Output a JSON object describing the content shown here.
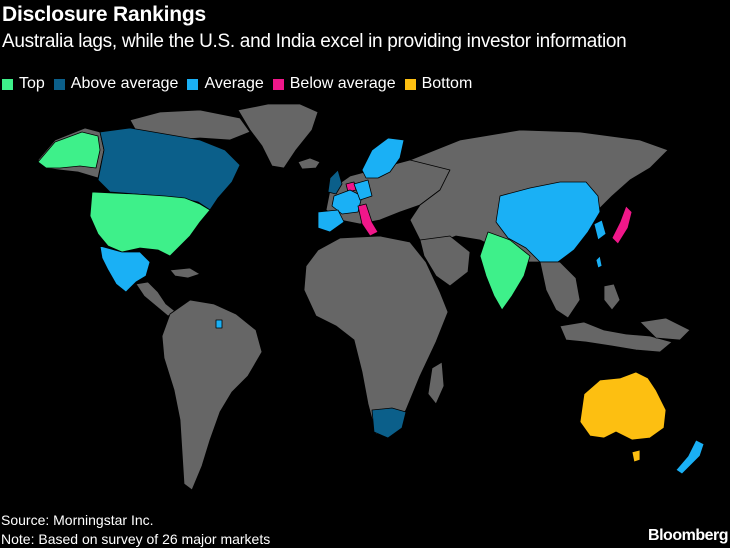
{
  "header": {
    "title": "Disclosure Rankings",
    "subtitle": "Australia lags, while the U.S. and India excel in providing investor information"
  },
  "legend": [
    {
      "label": "Top",
      "color": "#3ef08a"
    },
    {
      "label": "Above average",
      "color": "#0b5f8a"
    },
    {
      "label": "Average",
      "color": "#1ab0f5"
    },
    {
      "label": "Below average",
      "color": "#f0178a"
    },
    {
      "label": "Bottom",
      "color": "#fdbf11"
    }
  ],
  "colors": {
    "background": "#000000",
    "other_land": "#666666"
  },
  "footer": {
    "source": "Source: Morningstar Inc.",
    "note": "Note: Based on survey of 26 major markets",
    "brand": "Bloomberg"
  }
}
